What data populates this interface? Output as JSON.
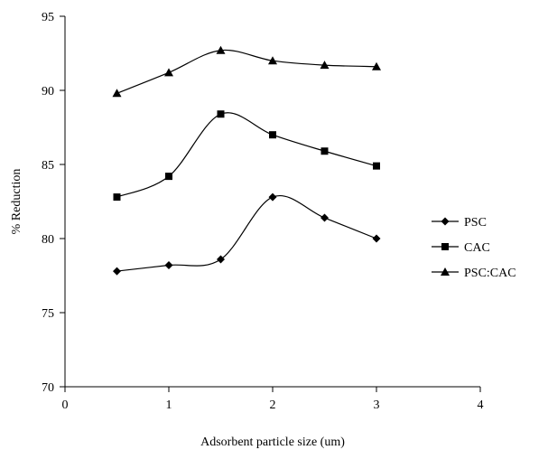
{
  "chart_data": {
    "type": "line",
    "title": "",
    "xlabel": "Adsorbent particle size (um)",
    "ylabel": "% Reduction",
    "xlim": [
      0,
      4
    ],
    "ylim": [
      70,
      95
    ],
    "xticks": [
      "0",
      "1",
      "2",
      "3",
      "4"
    ],
    "yticks": [
      "70",
      "75",
      "80",
      "85",
      "90",
      "95"
    ],
    "grid": false,
    "legend_position": "right",
    "x": [
      0.5,
      1,
      1.5,
      2,
      2.5,
      3
    ],
    "series": [
      {
        "name": "PSC",
        "marker": "diamond",
        "values": [
          77.8,
          78.2,
          78.6,
          82.8,
          81.4,
          80.0
        ]
      },
      {
        "name": "CAC",
        "marker": "square",
        "values": [
          82.8,
          84.2,
          88.4,
          87.0,
          85.9,
          84.9
        ]
      },
      {
        "name": "PSC:CAC",
        "marker": "triangle",
        "values": [
          89.8,
          91.2,
          92.7,
          92.0,
          91.7,
          91.6
        ]
      }
    ]
  }
}
